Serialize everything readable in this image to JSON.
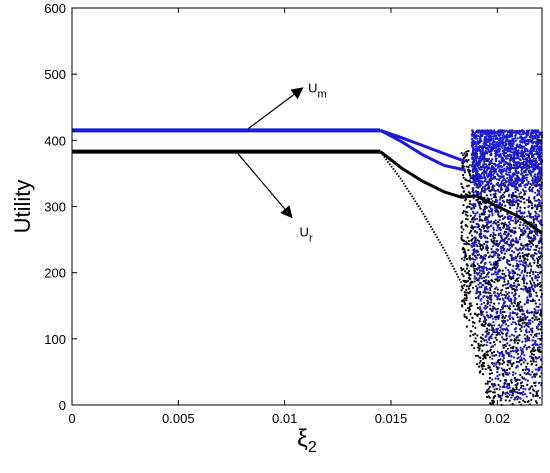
{
  "chart_data": {
    "type": "scatter",
    "title": "",
    "xlabel": "ξ",
    "xlabel_subscript": "2",
    "ylabel": "Utility",
    "xlim": [
      0,
      0.0221
    ],
    "ylim": [
      0,
      600
    ],
    "xticks": [
      0,
      0.005,
      0.01,
      0.015,
      0.02
    ],
    "xtick_labels": [
      "0",
      "0.005",
      "0.01",
      "0.015",
      "0.02"
    ],
    "yticks": [
      0,
      100,
      200,
      300,
      400,
      500,
      600
    ],
    "ytick_labels": [
      "0",
      "100",
      "200",
      "300",
      "400",
      "500",
      "600"
    ],
    "grid": false,
    "legend": "none",
    "series": [
      {
        "color": "#1a1ad6",
        "stable_value": 415,
        "stable_until": 0.0145,
        "branches": [
          {
            "x": [
              0.0145,
              0.0155,
              0.0165,
              0.0175,
              0.0185
            ],
            "y": [
              415,
              404,
              392,
              380,
              368
            ]
          },
          {
            "x": [
              0.0145,
              0.0155,
              0.0165,
              0.0175,
              0.0185
            ],
            "y": [
              415,
              398,
              378,
              362,
              355
            ]
          }
        ],
        "chaotic_region": {
          "x_start": 0.0188,
          "x_end": 0.0221,
          "y_range": [
            10,
            415
          ]
        }
      },
      {
        "color": "#000000",
        "stable_value": 383,
        "stable_until": 0.0145,
        "branches": [
          {
            "x": [
              0.0145,
              0.0155,
              0.0165,
              0.0175,
              0.0183,
              0.019,
              0.02,
              0.021,
              0.0221
            ],
            "y": [
              383,
              358,
              338,
              322,
              314,
              316,
              300,
              285,
              260
            ]
          },
          {
            "x": [
              0.0145,
              0.0155,
              0.0165,
              0.0175,
              0.0183
            ],
            "y": [
              383,
              340,
              290,
              235,
              185
            ]
          }
        ],
        "chaotic_region": {
          "x_start": 0.0183,
          "x_end": 0.0221,
          "y_range": [
            0,
            385
          ]
        }
      }
    ],
    "annotations": [
      {
        "label": "U",
        "subscript": "m",
        "arrow": "up-right",
        "series_index": 0
      },
      {
        "label": "U",
        "subscript": "r",
        "arrow": "down-right",
        "series_index": 1
      }
    ]
  }
}
